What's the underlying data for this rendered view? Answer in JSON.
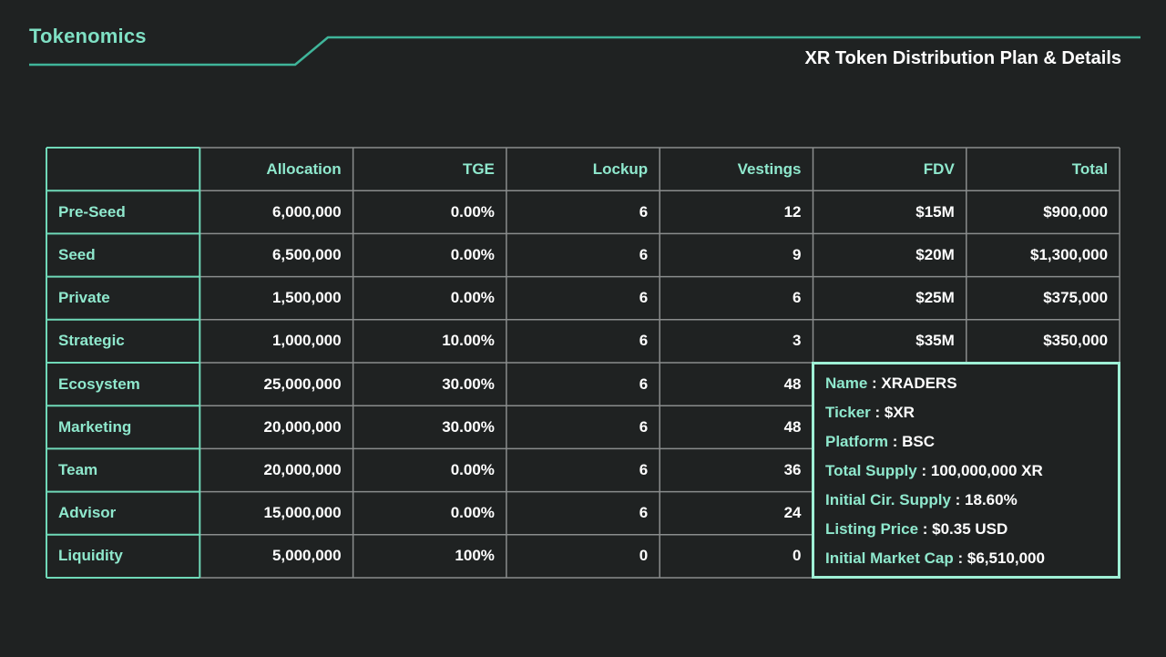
{
  "header": {
    "brand": "Tokenomics",
    "subtitle": "XR Token Distribution Plan & Details"
  },
  "table": {
    "columns": [
      "",
      "Allocation",
      "TGE",
      "Lockup",
      "Vestings",
      "FDV",
      "Total"
    ],
    "rows": [
      {
        "name": "Pre-Seed",
        "allocation": "6,000,000",
        "tge": "0.00%",
        "lockup": "6",
        "vestings": "12",
        "fdv": "$15M",
        "total": "$900,000"
      },
      {
        "name": "Seed",
        "allocation": "6,500,000",
        "tge": "0.00%",
        "lockup": "6",
        "vestings": "9",
        "fdv": "$20M",
        "total": "$1,300,000"
      },
      {
        "name": "Private",
        "allocation": "1,500,000",
        "tge": "0.00%",
        "lockup": "6",
        "vestings": "6",
        "fdv": "$25M",
        "total": "$375,000"
      },
      {
        "name": "Strategic",
        "allocation": "1,000,000",
        "tge": "10.00%",
        "lockup": "6",
        "vestings": "3",
        "fdv": "$35M",
        "total": "$350,000"
      },
      {
        "name": "Ecosystem",
        "allocation": "25,000,000",
        "tge": "30.00%",
        "lockup": "6",
        "vestings": "48"
      },
      {
        "name": "Marketing",
        "allocation": "20,000,000",
        "tge": "30.00%",
        "lockup": "6",
        "vestings": "48"
      },
      {
        "name": "Team",
        "allocation": "20,000,000",
        "tge": "0.00%",
        "lockup": "6",
        "vestings": "36"
      },
      {
        "name": "Advisor",
        "allocation": "15,000,000",
        "tge": "0.00%",
        "lockup": "6",
        "vestings": "24"
      },
      {
        "name": "Liquidity",
        "allocation": "5,000,000",
        "tge": "100%",
        "lockup": "0",
        "vestings": "0"
      }
    ]
  },
  "token_info": [
    {
      "label": "Name",
      "value": "XRADERS"
    },
    {
      "label": "Ticker",
      "value": "$XR"
    },
    {
      "label": "Platform",
      "value": "BSC"
    },
    {
      "label": "Total Supply",
      "value": "100,000,000 XR"
    },
    {
      "label": "Initial Cir. Supply",
      "value": "18.60%"
    },
    {
      "label": "Listing Price",
      "value": "$0.35 USD"
    },
    {
      "label": "Initial Market Cap",
      "value": "$6,510,000"
    }
  ],
  "colors": {
    "background": "#1f2222",
    "accent": "#8fe8cd",
    "header_line": "#3fb59a",
    "label_border": "#6fd9b8",
    "grid_border": "#8a8d8d",
    "text": "#ffffff"
  }
}
